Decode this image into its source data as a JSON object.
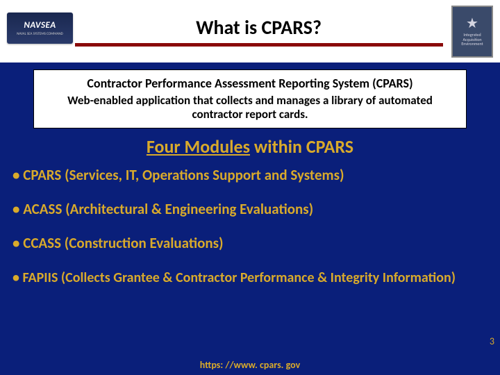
{
  "colors": {
    "slide_bg": "#0a1f7a",
    "header_bg": "#ffffff",
    "title_underline": "#8a0a0a",
    "subheading_text": "#d9aa2b",
    "bullet_text": "#d9aa2b",
    "footer_text": "#d9aa2b",
    "pagenum_text": "#d9aa2b"
  },
  "logo_left": {
    "text": "NAVSEA",
    "subtext": "NAVAL SEA SYSTEMS COMMAND"
  },
  "logo_right": {
    "line1": "Integrated",
    "line2": "Acquisition",
    "line3": "Environment"
  },
  "title": "What is CPARS?",
  "white_box": {
    "line1": "Contractor Performance Assessment Reporting System (CPARS)",
    "line2": "Web-enabled application that collects and manages a library of automated contractor report cards."
  },
  "subheading": {
    "underlined": "Four Modules",
    "rest": " within CPARS"
  },
  "bullets": [
    "• CPARS (Services, IT, Operations Support and Systems)",
    "• ACASS (Architectural & Engineering Evaluations)",
    "• CCASS (Construction Evaluations)",
    "• FAPIIS (Collects Grantee & Contractor Performance & Integrity Information)"
  ],
  "footer_url": "https: //www. cpars. gov",
  "page_number": "3"
}
